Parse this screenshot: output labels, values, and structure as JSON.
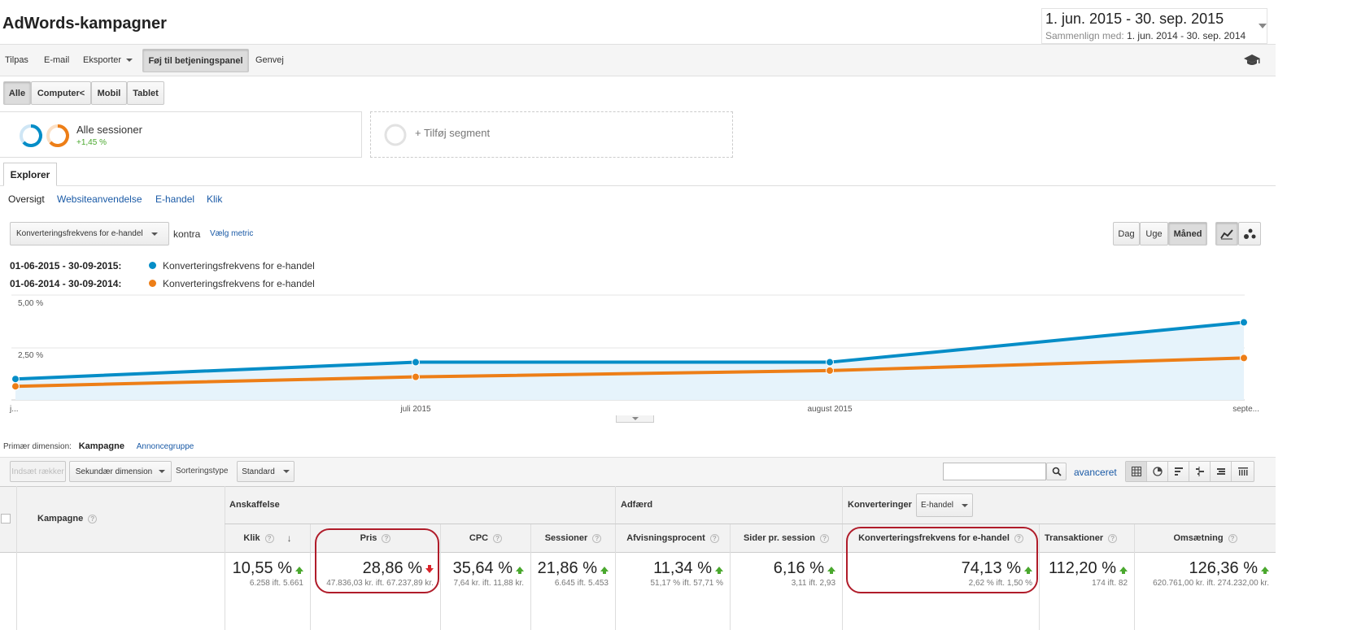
{
  "page_title": "AdWords-kampagner",
  "date_range": {
    "primary": "1. jun. 2015 - 30. sep. 2015",
    "compare_label": "Sammenlign med:",
    "compare_value": "1. jun. 2014 - 30. sep. 2014"
  },
  "toolbar": {
    "customize": "Tilpas",
    "email": "E-mail",
    "export": "Eksporter",
    "add_dashboard": "Føj til betjeningspanel",
    "shortcut": "Genvej"
  },
  "device_tabs": [
    "Alle",
    "Computer<",
    "Mobil",
    "Tablet"
  ],
  "segments": {
    "all_sessions": "Alle sessioner",
    "all_sessions_change": "+1,45 %",
    "add_segment": "+ Tilføj segment"
  },
  "explorer_tab": "Explorer",
  "sub_tabs": [
    "Oversigt",
    "Websiteanvendelse",
    "E-handel",
    "Klik"
  ],
  "metric_select": "Konverteringsfrekvens for e-handel",
  "versus": "kontra",
  "choose_metric": "Vælg metric",
  "granularity": [
    "Dag",
    "Uge",
    "Måned"
  ],
  "legend": [
    {
      "range": "01-06-2015 - 30-09-2015:",
      "name": "Konverteringsfrekvens for e-handel",
      "color": "#058dc7"
    },
    {
      "range": "01-06-2014 - 30-09-2014:",
      "name": "Konverteringsfrekvens for e-handel",
      "color": "#ed7e17"
    }
  ],
  "chart_data": {
    "type": "line",
    "x": [
      "j...",
      "juli 2015",
      "august 2015",
      "septe..."
    ],
    "y_ticks": [
      "5,00 %",
      "2,50 %"
    ],
    "ylim": [
      0,
      5
    ],
    "series": [
      {
        "name": "Konverteringsfrekvens for e-handel",
        "color": "#058dc7",
        "values": [
          1.0,
          1.8,
          1.8,
          3.7
        ]
      },
      {
        "name": "Konverteringsfrekvens for e-handel",
        "color": "#ed7e17",
        "values": [
          0.65,
          1.1,
          1.4,
          2.0
        ]
      }
    ]
  },
  "dimension": {
    "label": "Primær dimension:",
    "active": "Kampagne",
    "other": "Annoncegruppe"
  },
  "table_controls": {
    "insert_rows": "Indsæt rækker",
    "secondary_dimension": "Sekundær dimension",
    "sort_type_label": "Sorteringstype",
    "sort_type": "Standard",
    "advanced": "avanceret"
  },
  "table": {
    "campaign_header": "Kampagne",
    "group_acquisition": "Anskaffelse",
    "group_behavior": "Adfærd",
    "group_conversions": "Konverteringer",
    "conversion_select": "E-handel",
    "columns": [
      {
        "label": "Klik",
        "value": "10,55 %",
        "compare": "6.258 ift. 5.661",
        "trend": "up"
      },
      {
        "label": "Pris",
        "value": "28,86 %",
        "compare": "47.836,03 kr. ift. 67.237,89 kr.",
        "trend": "down"
      },
      {
        "label": "CPC",
        "value": "35,64 %",
        "compare": "7,64 kr. ift. 11,88 kr.",
        "trend": "up"
      },
      {
        "label": "Sessioner",
        "value": "21,86 %",
        "compare": "6.645 ift. 5.453",
        "trend": "up"
      },
      {
        "label": "Afvisningsprocent",
        "value": "11,34 %",
        "compare": "51,17 % ift. 57,71 %",
        "trend": "up"
      },
      {
        "label": "Sider pr. session",
        "value": "6,16 %",
        "compare": "3,11 ift. 2,93",
        "trend": "up"
      },
      {
        "label": "Konverteringsfrekvens for e-handel",
        "value": "74,13 %",
        "compare": "2,62 % ift. 1,50 %",
        "trend": "up"
      },
      {
        "label": "Transaktioner",
        "value": "112,20 %",
        "compare": "174 ift. 82",
        "trend": "up"
      },
      {
        "label": "Omsætning",
        "value": "126,36 %",
        "compare": "620.761,00 kr. ift. 274.232,00 kr.",
        "trend": "up"
      }
    ]
  }
}
